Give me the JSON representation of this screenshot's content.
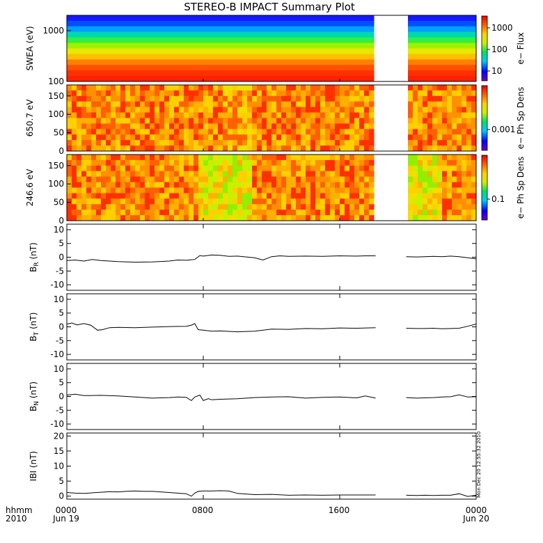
{
  "figure": {
    "title": "STEREO-B IMPACT Summary Plot",
    "x_axis": {
      "label_line1": "hhmm",
      "label_line2": "2010",
      "ticks": [
        "0000",
        "0800",
        "1600",
        "0000"
      ],
      "date_labels": [
        "Jun 19",
        "Jun 20"
      ]
    },
    "timestamp": "Mon Dec 20 12:55:32 2010"
  },
  "chart_data": [
    {
      "type": "heatmap",
      "ylabel": "SWEA (eV)",
      "y_scale": "log",
      "ylim": [
        100,
        2000
      ],
      "y_ticks": [
        "1000",
        "100"
      ],
      "x_range_hours": [
        0,
        24
      ],
      "data_gap_hours": [
        18.1,
        19.9
      ],
      "colorbar": {
        "label": "e− Flux",
        "ticks": [
          "1000",
          "100",
          "10"
        ],
        "scale": "log",
        "colors": [
          "#6a00c8",
          "#0000ff",
          "#00c8ff",
          "#00e060",
          "#c8f000",
          "#ffd000",
          "#ff6000",
          "#e80000"
        ]
      }
    },
    {
      "type": "heatmap",
      "ylabel": "650.7 eV",
      "ylim": [
        0,
        180
      ],
      "y_ticks": [
        "150",
        "100",
        "50",
        "0"
      ],
      "x_range_hours": [
        0,
        24
      ],
      "data_gap_hours": [
        18.1,
        19.9
      ],
      "colorbar": {
        "label": "e− Ph Sp Dens",
        "ticks": [
          "0.001"
        ],
        "scale": "log",
        "colors": [
          "#6a00c8",
          "#0000ff",
          "#00c8ff",
          "#00e060",
          "#c8f000",
          "#ffd000",
          "#ff6000",
          "#e80000"
        ]
      }
    },
    {
      "type": "heatmap",
      "ylabel": "246.6 eV",
      "ylim": [
        0,
        180
      ],
      "y_ticks": [
        "150",
        "100",
        "50",
        "0"
      ],
      "x_range_hours": [
        0,
        24
      ],
      "data_gap_hours": [
        18.1,
        19.9
      ],
      "colorbar": {
        "label": "e− Ph Sp Dens",
        "ticks": [
          "0.1"
        ],
        "scale": "log",
        "colors": [
          "#6a00c8",
          "#0000ff",
          "#00c8ff",
          "#00e060",
          "#c8f000",
          "#ffd000",
          "#ff6000",
          "#e80000"
        ]
      }
    },
    {
      "type": "line",
      "ylabel_main": "B",
      "ylabel_sub": "R",
      "ylabel_unit": " (nT)",
      "ylim": [
        -12,
        12
      ],
      "y_ticks": [
        10,
        5,
        0,
        -5,
        -10
      ],
      "x_range_hours": [
        0,
        24
      ],
      "segments": [
        {
          "x": [
            0,
            0.5,
            1,
            1.5,
            2,
            3,
            4,
            5,
            6,
            6.5,
            7,
            7.3,
            7.5,
            7.8,
            8,
            8.5,
            9,
            9.5,
            10,
            11,
            11.5,
            12,
            12.5,
            13,
            14,
            15,
            16,
            17,
            17.5,
            18.1
          ],
          "y": [
            -1.2,
            -1.0,
            -1.4,
            -0.8,
            -1.2,
            -1.6,
            -1.8,
            -1.7,
            -1.4,
            -1.0,
            -1.1,
            -0.9,
            -0.8,
            0.6,
            0.4,
            0.8,
            0.7,
            0.3,
            0.4,
            -0.2,
            -1.0,
            0.2,
            0.5,
            0.3,
            0.4,
            0.3,
            0.5,
            0.4,
            0.5,
            0.5
          ]
        },
        {
          "x": [
            19.9,
            20.5,
            21,
            21.5,
            22,
            22.5,
            23,
            23.5,
            24
          ],
          "y": [
            0.2,
            0.1,
            0.2,
            0.3,
            0.2,
            0.4,
            0.2,
            -0.2,
            -0.6
          ]
        }
      ]
    },
    {
      "type": "line",
      "ylabel_main": "B",
      "ylabel_sub": "T",
      "ylabel_unit": " (nT)",
      "ylim": [
        -12,
        12
      ],
      "y_ticks": [
        10,
        5,
        0,
        -5,
        -10
      ],
      "x_range_hours": [
        0,
        24
      ],
      "segments": [
        {
          "x": [
            0,
            0.3,
            0.6,
            1,
            1.4,
            1.8,
            2.1,
            2.5,
            3,
            4,
            5,
            6,
            7,
            7.3,
            7.5,
            7.7,
            8,
            8.5,
            9,
            10,
            11,
            12,
            13,
            14,
            15,
            16,
            17,
            18.1
          ],
          "y": [
            1.0,
            1.4,
            0.7,
            1.2,
            0.6,
            -1.2,
            -1.0,
            -0.3,
            -0.2,
            -0.3,
            -0.1,
            0.1,
            0.2,
            0.6,
            1.2,
            -1.0,
            -1.2,
            -1.6,
            -1.5,
            -1.8,
            -1.6,
            -0.8,
            -0.9,
            -0.6,
            -0.7,
            -0.4,
            -0.5,
            -0.3
          ]
        },
        {
          "x": [
            19.9,
            20.5,
            21,
            21.5,
            22,
            22.5,
            23,
            23.5,
            24
          ],
          "y": [
            -0.5,
            -0.6,
            -0.6,
            -0.5,
            -0.7,
            -0.6,
            -0.5,
            0.2,
            1.0
          ]
        }
      ]
    },
    {
      "type": "line",
      "ylabel_main": "B",
      "ylabel_sub": "N",
      "ylabel_unit": " (nT)",
      "ylim": [
        -12,
        12
      ],
      "y_ticks": [
        10,
        5,
        0,
        -5,
        -10
      ],
      "x_range_hours": [
        0,
        24
      ],
      "segments": [
        {
          "x": [
            0,
            0.5,
            1,
            2,
            3,
            4,
            5,
            6,
            6.5,
            7,
            7.3,
            7.5,
            7.8,
            8,
            8.3,
            8.5,
            9,
            10,
            11,
            12,
            13,
            14,
            15,
            16,
            17,
            17.5,
            18.1
          ],
          "y": [
            0.5,
            0.8,
            0.3,
            0.4,
            0.2,
            -0.2,
            -0.6,
            -0.4,
            -0.2,
            -0.3,
            -1.5,
            -0.2,
            0.5,
            -1.5,
            -0.8,
            -1.2,
            -1.0,
            -0.8,
            -0.4,
            -0.2,
            -0.1,
            -0.6,
            -0.3,
            -0.2,
            -0.5,
            0.2,
            -0.6
          ]
        },
        {
          "x": [
            19.9,
            20.5,
            21,
            21.5,
            22,
            22.5,
            23,
            23.5,
            24
          ],
          "y": [
            -0.4,
            -0.6,
            -0.5,
            -0.4,
            -0.2,
            -0.1,
            0.6,
            -0.2,
            -0.1
          ]
        }
      ]
    },
    {
      "type": "line",
      "ylabel_main": "|B| (nT)",
      "ylabel_display": "IBI (nT)",
      "ylim": [
        -1,
        21
      ],
      "y_ticks": [
        20,
        15,
        10,
        5,
        0
      ],
      "x_range_hours": [
        0,
        24
      ],
      "segments": [
        {
          "x": [
            0,
            0.5,
            1,
            1.5,
            2,
            2.5,
            3,
            3.5,
            4,
            4.5,
            5,
            5.5,
            6,
            6.5,
            7,
            7.3,
            7.5,
            7.7,
            8,
            8.5,
            9,
            9.5,
            10,
            11,
            12,
            13,
            14,
            15,
            16,
            17,
            18.1
          ],
          "y": [
            1.2,
            1.0,
            0.9,
            1.1,
            1.3,
            1.5,
            1.4,
            1.6,
            1.7,
            1.6,
            1.6,
            1.4,
            1.2,
            1.0,
            0.8,
            0.0,
            1.0,
            1.6,
            1.7,
            1.7,
            1.8,
            1.7,
            0.9,
            0.5,
            0.6,
            0.3,
            0.4,
            0.3,
            0.4,
            0.4,
            0.4
          ]
        },
        {
          "x": [
            19.9,
            20.5,
            21,
            21.5,
            22,
            22.5,
            23,
            23.5,
            24
          ],
          "y": [
            0.3,
            0.2,
            0.3,
            0.2,
            0.3,
            0.3,
            0.8,
            -0.1,
            0.3
          ]
        }
      ]
    }
  ]
}
